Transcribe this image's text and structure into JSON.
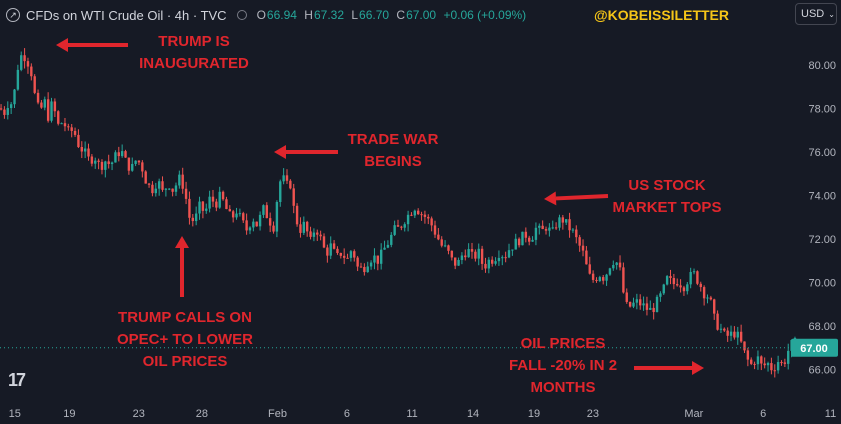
{
  "header": {
    "symbol": "CFDs on WTI Crude Oil · 4h · TVC",
    "logo_glyph": "↗",
    "ohlc": {
      "o_key": "O",
      "o": "66.94",
      "h_key": "H",
      "h": "67.32",
      "l_key": "L",
      "l": "66.70",
      "c_key": "C",
      "c": "67.00",
      "change": "+0.06 (+0.09%)"
    },
    "brand": "@KOBEISSILETTER",
    "currency": "USD",
    "currency_chevron": "⌄"
  },
  "tv_logo": "17",
  "colors": {
    "background": "#161a25",
    "up": "#26a69a",
    "down": "#ef5350",
    "annotation": "#e0262d",
    "axis_text": "#b2b5be",
    "price_tag_bg": "#26a69a",
    "last_price_line": "#26a69a"
  },
  "chart_data": {
    "type": "candlestick",
    "title": "CFDs on WTI Crude Oil · 4h · TVC",
    "ylim": [
      64.6,
      81.6
    ],
    "y_ticks": [
      66.0,
      68.0,
      70.0,
      72.0,
      74.0,
      76.0,
      78.0,
      80.0
    ],
    "y_tick_labels": [
      "66.00",
      "68.00",
      "70.00",
      "72.00",
      "74.00",
      "76.00",
      "78.00",
      "80.00"
    ],
    "x_ticks": [
      "15",
      "19",
      "23",
      "28",
      "Feb",
      "6",
      "11",
      "14",
      "19",
      "23",
      "Mar",
      "6",
      "11"
    ],
    "last_price": 67.0,
    "last_price_label": "67.00",
    "price_path": [
      {
        "t": 0,
        "p": 78.0
      },
      {
        "t": 4,
        "p": 77.8
      },
      {
        "t": 8,
        "p": 78.3
      },
      {
        "t": 12,
        "p": 78.2
      },
      {
        "t": 16,
        "p": 79.5
      },
      {
        "t": 18,
        "p": 80.3
      },
      {
        "t": 22,
        "p": 80.5
      },
      {
        "t": 26,
        "p": 80.2
      },
      {
        "t": 30,
        "p": 79.6
      },
      {
        "t": 34,
        "p": 78.3
      },
      {
        "t": 38,
        "p": 77.8
      },
      {
        "t": 42,
        "p": 78.4
      },
      {
        "t": 46,
        "p": 77.6
      },
      {
        "t": 50,
        "p": 78.3
      },
      {
        "t": 55,
        "p": 77.2
      },
      {
        "t": 60,
        "p": 77.4
      },
      {
        "t": 65,
        "p": 76.9
      },
      {
        "t": 70,
        "p": 77.0
      },
      {
        "t": 75,
        "p": 76.3
      },
      {
        "t": 80,
        "p": 76.0
      },
      {
        "t": 85,
        "p": 75.6
      },
      {
        "t": 90,
        "p": 75.8
      },
      {
        "t": 95,
        "p": 75.3
      },
      {
        "t": 100,
        "p": 75.6
      },
      {
        "t": 105,
        "p": 75.4
      },
      {
        "t": 110,
        "p": 75.8
      },
      {
        "t": 115,
        "p": 76.1
      },
      {
        "t": 120,
        "p": 75.5
      },
      {
        "t": 125,
        "p": 75.2
      },
      {
        "t": 130,
        "p": 75.7
      },
      {
        "t": 135,
        "p": 75.3
      },
      {
        "t": 140,
        "p": 74.5
      },
      {
        "t": 145,
        "p": 74.3
      },
      {
        "t": 150,
        "p": 74.7
      },
      {
        "t": 155,
        "p": 74.1
      },
      {
        "t": 160,
        "p": 74.6
      },
      {
        "t": 165,
        "p": 74.2
      },
      {
        "t": 170,
        "p": 74.8
      },
      {
        "t": 175,
        "p": 74.4
      },
      {
        "t": 180,
        "p": 73.0
      },
      {
        "t": 185,
        "p": 72.8
      },
      {
        "t": 190,
        "p": 73.5
      },
      {
        "t": 195,
        "p": 73.2
      },
      {
        "t": 200,
        "p": 73.9
      },
      {
        "t": 205,
        "p": 73.6
      },
      {
        "t": 210,
        "p": 74.0
      },
      {
        "t": 215,
        "p": 73.4
      },
      {
        "t": 220,
        "p": 72.9
      },
      {
        "t": 225,
        "p": 73.3
      },
      {
        "t": 230,
        "p": 72.8
      },
      {
        "t": 235,
        "p": 72.4
      },
      {
        "t": 240,
        "p": 73.0
      },
      {
        "t": 245,
        "p": 72.6
      },
      {
        "t": 250,
        "p": 73.4
      },
      {
        "t": 255,
        "p": 73.0
      },
      {
        "t": 260,
        "p": 72.5
      },
      {
        "t": 264,
        "p": 74.0
      },
      {
        "t": 268,
        "p": 75.0
      },
      {
        "t": 272,
        "p": 74.4
      },
      {
        "t": 276,
        "p": 74.6
      },
      {
        "t": 280,
        "p": 73.2
      },
      {
        "t": 285,
        "p": 72.4
      },
      {
        "t": 290,
        "p": 72.7
      },
      {
        "t": 295,
        "p": 71.8
      },
      {
        "t": 300,
        "p": 72.6
      },
      {
        "t": 305,
        "p": 72.0
      },
      {
        "t": 310,
        "p": 71.3
      },
      {
        "t": 315,
        "p": 71.7
      },
      {
        "t": 320,
        "p": 71.1
      },
      {
        "t": 325,
        "p": 71.4
      },
      {
        "t": 330,
        "p": 71.0
      },
      {
        "t": 335,
        "p": 71.6
      },
      {
        "t": 340,
        "p": 70.7
      },
      {
        "t": 345,
        "p": 70.6
      },
      {
        "t": 350,
        "p": 71.0
      },
      {
        "t": 355,
        "p": 71.2
      },
      {
        "t": 360,
        "p": 71.0
      },
      {
        "t": 365,
        "p": 71.5
      },
      {
        "t": 370,
        "p": 71.9
      },
      {
        "t": 375,
        "p": 72.4
      },
      {
        "t": 380,
        "p": 72.5
      },
      {
        "t": 385,
        "p": 72.9
      },
      {
        "t": 390,
        "p": 73.2
      },
      {
        "t": 395,
        "p": 73.5
      },
      {
        "t": 400,
        "p": 73.2
      },
      {
        "t": 405,
        "p": 73.0
      },
      {
        "t": 410,
        "p": 72.7
      },
      {
        "t": 415,
        "p": 72.2
      },
      {
        "t": 420,
        "p": 71.7
      },
      {
        "t": 425,
        "p": 71.5
      },
      {
        "t": 430,
        "p": 71.0
      },
      {
        "t": 435,
        "p": 70.8
      },
      {
        "t": 440,
        "p": 71.3
      },
      {
        "t": 445,
        "p": 71.5
      },
      {
        "t": 450,
        "p": 71.1
      },
      {
        "t": 455,
        "p": 71.4
      },
      {
        "t": 460,
        "p": 70.7
      },
      {
        "t": 465,
        "p": 71.0
      },
      {
        "t": 470,
        "p": 71.1
      },
      {
        "t": 475,
        "p": 71.4
      },
      {
        "t": 480,
        "p": 71.2
      },
      {
        "t": 485,
        "p": 71.6
      },
      {
        "t": 490,
        "p": 71.8
      },
      {
        "t": 495,
        "p": 72.0
      },
      {
        "t": 500,
        "p": 72.2
      },
      {
        "t": 505,
        "p": 72.0
      },
      {
        "t": 510,
        "p": 72.5
      },
      {
        "t": 515,
        "p": 72.3
      },
      {
        "t": 520,
        "p": 72.6
      },
      {
        "t": 525,
        "p": 72.2
      },
      {
        "t": 530,
        "p": 72.8
      },
      {
        "t": 535,
        "p": 72.9
      },
      {
        "t": 540,
        "p": 72.6
      },
      {
        "t": 545,
        "p": 72.3
      },
      {
        "t": 550,
        "p": 71.8
      },
      {
        "t": 555,
        "p": 71.3
      },
      {
        "t": 560,
        "p": 70.3
      },
      {
        "t": 565,
        "p": 70.1
      },
      {
        "t": 570,
        "p": 70.4
      },
      {
        "t": 575,
        "p": 70.2
      },
      {
        "t": 580,
        "p": 70.8
      },
      {
        "t": 585,
        "p": 71.1
      },
      {
        "t": 590,
        "p": 70.5
      },
      {
        "t": 595,
        "p": 68.9
      },
      {
        "t": 600,
        "p": 68.9
      },
      {
        "t": 605,
        "p": 69.1
      },
      {
        "t": 610,
        "p": 69.0
      },
      {
        "t": 615,
        "p": 68.8
      },
      {
        "t": 620,
        "p": 68.7
      },
      {
        "t": 625,
        "p": 69.1
      },
      {
        "t": 630,
        "p": 69.5
      },
      {
        "t": 635,
        "p": 70.2
      },
      {
        "t": 640,
        "p": 69.9
      },
      {
        "t": 645,
        "p": 70.1
      },
      {
        "t": 650,
        "p": 69.8
      },
      {
        "t": 655,
        "p": 70.2
      },
      {
        "t": 660,
        "p": 70.4
      },
      {
        "t": 665,
        "p": 70.0
      },
      {
        "t": 670,
        "p": 69.5
      },
      {
        "t": 675,
        "p": 69.3
      },
      {
        "t": 680,
        "p": 68.2
      },
      {
        "t": 685,
        "p": 67.9
      },
      {
        "t": 690,
        "p": 67.5
      },
      {
        "t": 695,
        "p": 67.6
      },
      {
        "t": 700,
        "p": 67.7
      },
      {
        "t": 705,
        "p": 67.2
      },
      {
        "t": 710,
        "p": 66.5
      },
      {
        "t": 715,
        "p": 66.2
      },
      {
        "t": 720,
        "p": 66.6
      },
      {
        "t": 725,
        "p": 66.1
      },
      {
        "t": 730,
        "p": 66.3
      },
      {
        "t": 735,
        "p": 66.0
      },
      {
        "t": 740,
        "p": 66.4
      },
      {
        "t": 745,
        "p": 66.2
      },
      {
        "t": 750,
        "p": 66.9
      },
      {
        "t": 755,
        "p": 67.3
      },
      {
        "t": 759,
        "p": 67.0
      }
    ],
    "x_range": [
      0,
      800
    ],
    "x_tick_t": [
      14,
      66,
      132,
      192,
      264,
      330,
      392,
      450,
      508,
      564,
      660,
      726,
      790
    ],
    "annotations": [
      {
        "text_lines": [
          "TRUMP IS",
          "INAUGURATED"
        ]
      },
      {
        "text_lines": [
          "TRADE WAR",
          "BEGINS"
        ]
      },
      {
        "text_lines": [
          "US STOCK",
          "MARKET TOPS"
        ]
      },
      {
        "text_lines": [
          "TRUMP CALLS ON",
          "OPEC+ TO LOWER",
          "OIL PRICES"
        ]
      },
      {
        "text_lines": [
          "OIL PRICES",
          "FALL -20% IN 2",
          "MONTHS"
        ]
      }
    ]
  }
}
